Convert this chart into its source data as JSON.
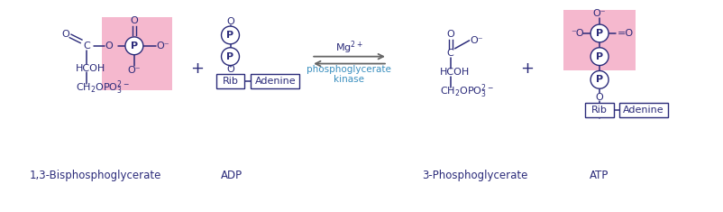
{
  "bg_color": "#ffffff",
  "dark_color": "#2b2b7a",
  "cyan_color": "#3a8fbf",
  "pink_bg": "#f5b8ce",
  "arrow_color": "#666666",
  "label_1": "1,3-Bisphosphoglycerate",
  "label_2": "ADP",
  "label_3": "3-Phosphoglycerate",
  "label_4": "ATP",
  "enzyme": "phosphoglycerate\nkinase",
  "figsize": [
    8.03,
    2.35
  ],
  "dpi": 100
}
